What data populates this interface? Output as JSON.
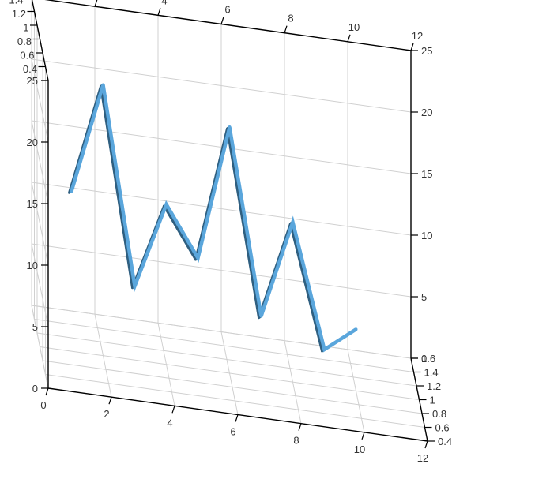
{
  "chart_data": {
    "type": "line",
    "subtype": "3d-ribbon",
    "title": "",
    "xlabel": "",
    "ylabel": "",
    "zlabel": "",
    "xlim": [
      0,
      12
    ],
    "ylim": [
      0,
      25
    ],
    "zlim": [
      0.4,
      1.6
    ],
    "x_ticks": [
      "0",
      "2",
      "4",
      "6",
      "8",
      "10",
      "12"
    ],
    "y_ticks": [
      "0",
      "5",
      "10",
      "15",
      "20",
      "25"
    ],
    "z_ticks": [
      "0.4",
      "0.6",
      "0.8",
      "1",
      "1.2",
      "1.4",
      "1.6"
    ],
    "grid": true,
    "colors": {
      "ribbon_top": "#5aa6dc",
      "ribbon_side": "#2f5f80",
      "grid": "#d0d0d0",
      "axis": "#000000"
    },
    "series": [
      {
        "z": 1.0,
        "points": [
          {
            "x": 1,
            "y": 13
          },
          {
            "x": 2,
            "y": 22
          },
          {
            "x": 3,
            "y": 6
          },
          {
            "x": 4,
            "y": 13
          },
          {
            "x": 5,
            "y": 9
          },
          {
            "x": 6,
            "y": 20
          },
          {
            "x": 7,
            "y": 5
          },
          {
            "x": 8,
            "y": 13
          },
          {
            "x": 9,
            "y": 3
          },
          {
            "x": 10,
            "y": 5
          }
        ]
      }
    ]
  }
}
